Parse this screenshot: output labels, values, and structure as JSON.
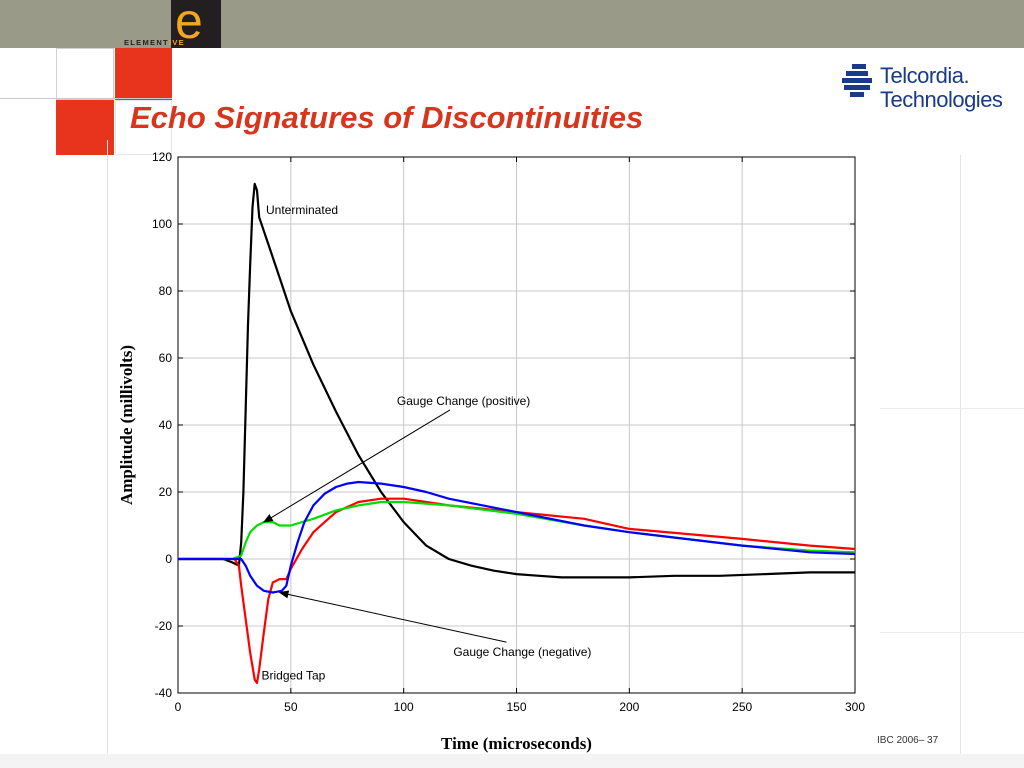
{
  "header": {
    "logo_letter": "e",
    "logo_word_prefix": "ELEMENT",
    "logo_word_suffix": "IVE",
    "brand_line1": "Telcordia.",
    "brand_line2": "Technologies"
  },
  "slide": {
    "title": "Echo Signatures of Discontinuities",
    "footer": "IBC 2006– 37"
  },
  "colors": {
    "title": "#d7351c",
    "accent_red": "#e8341c",
    "top_bar": "#9a9a88",
    "brand_blue": "#1a3a8a"
  },
  "chart_data": {
    "type": "line",
    "xlabel": "Time (microseconds)",
    "ylabel": "Amplitude (millivolts)",
    "xlim": [
      0,
      300
    ],
    "ylim": [
      -40,
      120
    ],
    "xticks": [
      0,
      50,
      100,
      150,
      200,
      250,
      300
    ],
    "yticks": [
      -40,
      -20,
      0,
      20,
      40,
      60,
      80,
      100,
      120
    ],
    "grid": true,
    "series": [
      {
        "color": "#000000",
        "points": [
          [
            0,
            0
          ],
          [
            20,
            0
          ],
          [
            24,
            -1
          ],
          [
            27,
            -2
          ],
          [
            28,
            5
          ],
          [
            29,
            20
          ],
          [
            30,
            45
          ],
          [
            31,
            70
          ],
          [
            32,
            88
          ],
          [
            33,
            105
          ],
          [
            34,
            112
          ],
          [
            35,
            110
          ],
          [
            36,
            102
          ],
          [
            40,
            94
          ],
          [
            45,
            84
          ],
          [
            50,
            74
          ],
          [
            60,
            58
          ],
          [
            70,
            44
          ],
          [
            80,
            31
          ],
          [
            90,
            20
          ],
          [
            100,
            11
          ],
          [
            110,
            4
          ],
          [
            120,
            0
          ],
          [
            130,
            -2
          ],
          [
            140,
            -3.5
          ],
          [
            150,
            -4.5
          ],
          [
            160,
            -5
          ],
          [
            170,
            -5.5
          ],
          [
            180,
            -5.5
          ],
          [
            190,
            -5.5
          ],
          [
            200,
            -5.5
          ],
          [
            220,
            -5
          ],
          [
            240,
            -5
          ],
          [
            260,
            -4.5
          ],
          [
            280,
            -4
          ],
          [
            300,
            -4
          ]
        ]
      },
      {
        "color": "#ff0000",
        "points": [
          [
            0,
            0
          ],
          [
            25,
            0
          ],
          [
            27,
            -2
          ],
          [
            28,
            -8
          ],
          [
            30,
            -18
          ],
          [
            32,
            -28
          ],
          [
            34,
            -36
          ],
          [
            35,
            -37
          ],
          [
            36,
            -33
          ],
          [
            38,
            -22
          ],
          [
            40,
            -12
          ],
          [
            42,
            -7
          ],
          [
            45,
            -6
          ],
          [
            48,
            -6
          ],
          [
            50,
            -3
          ],
          [
            55,
            3
          ],
          [
            60,
            8
          ],
          [
            65,
            11
          ],
          [
            70,
            14
          ],
          [
            80,
            17
          ],
          [
            90,
            18
          ],
          [
            100,
            18
          ],
          [
            110,
            17
          ],
          [
            120,
            16
          ],
          [
            150,
            14
          ],
          [
            180,
            12
          ],
          [
            200,
            9
          ],
          [
            250,
            6
          ],
          [
            280,
            4
          ],
          [
            300,
            3
          ]
        ]
      },
      {
        "color": "#00dd00",
        "points": [
          [
            0,
            0
          ],
          [
            24,
            0
          ],
          [
            28,
            1
          ],
          [
            30,
            5
          ],
          [
            32,
            8
          ],
          [
            35,
            10
          ],
          [
            38,
            11
          ],
          [
            42,
            11
          ],
          [
            45,
            10
          ],
          [
            50,
            10
          ],
          [
            55,
            11
          ],
          [
            60,
            12
          ],
          [
            70,
            14.5
          ],
          [
            80,
            16
          ],
          [
            90,
            17
          ],
          [
            100,
            17
          ],
          [
            110,
            16.5
          ],
          [
            120,
            16
          ],
          [
            150,
            13.5
          ],
          [
            180,
            10
          ],
          [
            200,
            8
          ],
          [
            250,
            4
          ],
          [
            280,
            2.5
          ],
          [
            300,
            2
          ]
        ]
      },
      {
        "color": "#0000ff",
        "points": [
          [
            0,
            0
          ],
          [
            24,
            0
          ],
          [
            28,
            0
          ],
          [
            30,
            -2
          ],
          [
            32,
            -5
          ],
          [
            35,
            -8
          ],
          [
            38,
            -9.5
          ],
          [
            42,
            -10
          ],
          [
            46,
            -9.5
          ],
          [
            48,
            -8
          ],
          [
            50,
            -2
          ],
          [
            53,
            5
          ],
          [
            56,
            11
          ],
          [
            60,
            16
          ],
          [
            65,
            19.5
          ],
          [
            70,
            21.5
          ],
          [
            75,
            22.5
          ],
          [
            80,
            23
          ],
          [
            90,
            22.5
          ],
          [
            100,
            21.5
          ],
          [
            110,
            20
          ],
          [
            120,
            18
          ],
          [
            150,
            14
          ],
          [
            180,
            10
          ],
          [
            200,
            8
          ],
          [
            250,
            4
          ],
          [
            280,
            2
          ],
          [
            300,
            1.5
          ]
        ]
      }
    ],
    "annotations": [
      {
        "label": "Unterminated",
        "x": 39,
        "y": 103
      },
      {
        "label": "Gauge Change (positive)",
        "x": 97,
        "y": 46,
        "arrow_to": [
          38,
          11
        ]
      },
      {
        "label": "Bridged Tap",
        "x": 37,
        "y": -36
      },
      {
        "label": "Gauge Change (negative)",
        "x": 122,
        "y": -29,
        "arrow_to": [
          45,
          -10
        ]
      }
    ]
  }
}
